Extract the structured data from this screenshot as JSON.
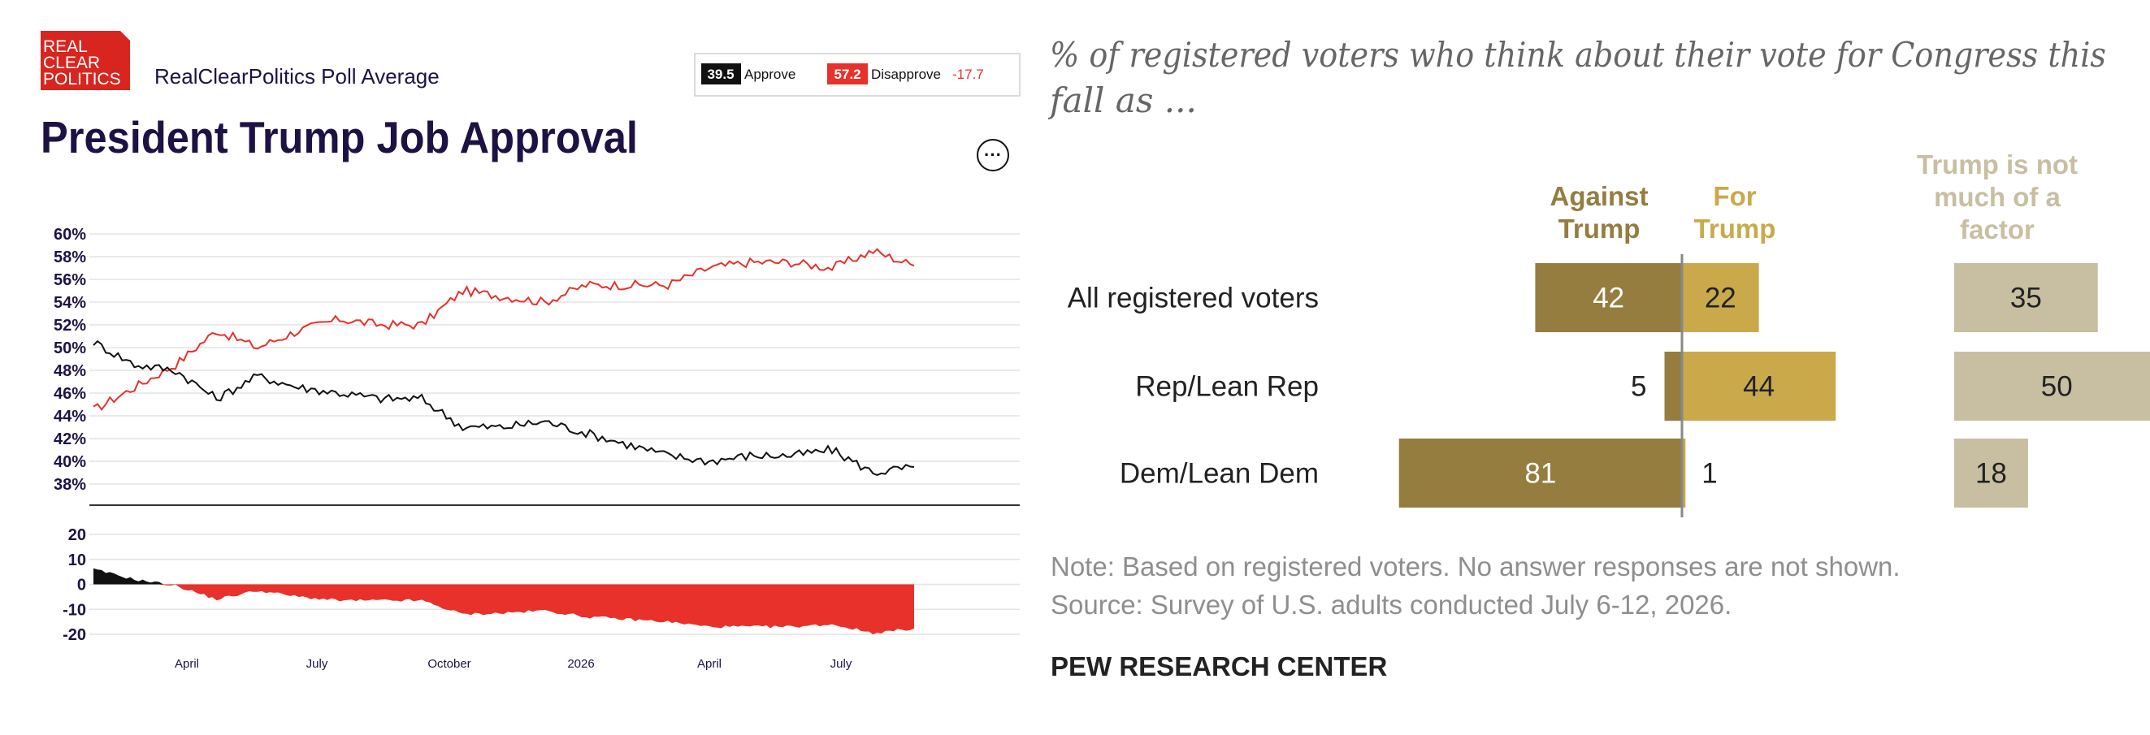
{
  "rcp": {
    "logo_lines": [
      "REAL",
      "CLEAR",
      "POLITICS"
    ],
    "source": "RealClearPolitics Poll Average",
    "title": "President Trump Job Approval",
    "more_button": "···",
    "legend": {
      "approve_value": "39.5",
      "approve_label": "Approve",
      "disapprove_value": "57.2",
      "disapprove_label": "Disapprove",
      "spread": "-17.7"
    },
    "colors": {
      "navy": "#1e1245",
      "red": "#e8312a",
      "approve_line": "#111111"
    }
  },
  "chart_data": [
    {
      "type": "line",
      "title": "President Trump Job Approval",
      "x_ticks": [
        "April",
        "July",
        "October",
        "2026",
        "April",
        "July"
      ],
      "y_ticks": [
        "60%",
        "58%",
        "56%",
        "54%",
        "52%",
        "50%",
        "48%",
        "46%",
        "44%",
        "42%",
        "40%",
        "38%"
      ],
      "ylim": [
        37,
        60
      ],
      "grid": true,
      "series": [
        {
          "name": "Disapprove",
          "color": "#e8312a",
          "x": [
            0,
            5,
            10,
            15,
            20,
            25,
            30,
            35,
            40,
            45,
            50,
            55,
            60,
            65,
            70,
            75,
            80,
            85,
            90,
            95,
            100
          ],
          "values": [
            44.5,
            46.5,
            48.5,
            51.5,
            50,
            51.5,
            52.5,
            52,
            52,
            55,
            54.5,
            54,
            55.5,
            55.5,
            55.5,
            57,
            57.5,
            57.5,
            57,
            58.5,
            57.2
          ]
        },
        {
          "name": "Approve",
          "color": "#111111",
          "x": [
            0,
            5,
            10,
            15,
            20,
            25,
            30,
            35,
            40,
            45,
            50,
            55,
            60,
            65,
            70,
            75,
            80,
            85,
            90,
            95,
            100
          ],
          "values": [
            50.5,
            48.5,
            48,
            45.5,
            47.5,
            46.5,
            46,
            45.5,
            45.5,
            43,
            43,
            43.5,
            42.5,
            41.5,
            40.5,
            40,
            40.5,
            40.5,
            41,
            39,
            39.5
          ]
        }
      ]
    },
    {
      "type": "area",
      "title": "Net approval spread",
      "y_ticks": [
        "20",
        "10",
        "0",
        "-10",
        "-20"
      ],
      "ylim": [
        -22,
        22
      ],
      "x": [
        0,
        5,
        10,
        15,
        20,
        25,
        30,
        35,
        40,
        45,
        50,
        55,
        60,
        65,
        70,
        75,
        80,
        85,
        90,
        95,
        100
      ],
      "values": [
        6,
        2,
        -0.5,
        -6,
        -2.5,
        -5,
        -6.5,
        -6.5,
        -6.5,
        -12,
        -11.5,
        -10.5,
        -13,
        -14,
        -15,
        -17,
        -17,
        -17,
        -16,
        -19.5,
        -17.7
      ],
      "positive_color": "#111111",
      "negative_color": "#e8312a"
    },
    {
      "type": "bar",
      "title": "% of registered voters who think about their vote for Congress this fall as ...",
      "categories": [
        "All registered voters",
        "Rep/Lean Rep",
        "Dem/Lean Dem"
      ],
      "series": [
        {
          "name": "Against Trump",
          "color": "#957d40",
          "values": [
            42,
            5,
            81
          ]
        },
        {
          "name": "For Trump",
          "color": "#c9a94a",
          "values": [
            22,
            44,
            1
          ]
        },
        {
          "name": "Trump is not much of a factor",
          "color": "#c8bfa2",
          "values": [
            35,
            50,
            18
          ]
        }
      ],
      "note": "Note: Based on registered voters. No answer responses are not shown.",
      "source": "Source: Survey of U.S. adults conducted July 6-12, 2026.",
      "org": "PEW RESEARCH CENTER"
    }
  ]
}
